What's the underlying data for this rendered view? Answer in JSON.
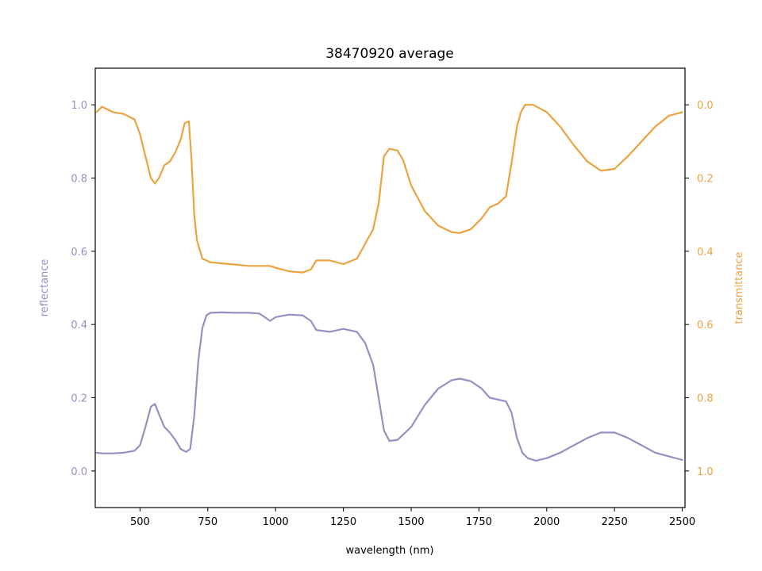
{
  "chart_data": {
    "type": "line",
    "title": "38470920 average",
    "xlabel": "wavelength (nm)",
    "ylabel_left": "reflectance",
    "ylabel_right": "transmittance",
    "xlim": [
      335,
      2510
    ],
    "ylim_left": [
      -0.1,
      1.1
    ],
    "ylim_right": [
      1.1,
      -0.1
    ],
    "x_ticks": [
      "500",
      "750",
      "1000",
      "1250",
      "1500",
      "1750",
      "2000",
      "2250",
      "2500"
    ],
    "y_left_ticks": [
      "0.0",
      "0.2",
      "0.4",
      "0.6",
      "0.8",
      "1.0"
    ],
    "y_right_ticks": [
      "0.0",
      "0.2",
      "0.4",
      "0.6",
      "0.8",
      "1.0"
    ],
    "grid": false,
    "colors": {
      "reflectance": "#9690c2",
      "transmittance": "#eda240",
      "axes": "#000000"
    },
    "series": [
      {
        "name": "reflectance",
        "axis": "left",
        "color": "#9690c2",
        "x": [
          340,
          360,
          400,
          440,
          480,
          500,
          520,
          540,
          555,
          570,
          590,
          610,
          630,
          650,
          670,
          685,
          700,
          715,
          730,
          745,
          760,
          800,
          850,
          900,
          940,
          960,
          980,
          1000,
          1050,
          1100,
          1130,
          1150,
          1200,
          1250,
          1300,
          1330,
          1360,
          1380,
          1400,
          1420,
          1450,
          1500,
          1550,
          1600,
          1650,
          1680,
          1720,
          1760,
          1790,
          1820,
          1850,
          1870,
          1890,
          1910,
          1930,
          1960,
          2000,
          2050,
          2100,
          2150,
          2200,
          2250,
          2300,
          2350,
          2400,
          2450,
          2500
        ],
        "y": [
          0.05,
          0.048,
          0.048,
          0.05,
          0.055,
          0.07,
          0.12,
          0.175,
          0.183,
          0.155,
          0.12,
          0.105,
          0.085,
          0.06,
          0.052,
          0.06,
          0.15,
          0.3,
          0.39,
          0.425,
          0.432,
          0.433,
          0.432,
          0.432,
          0.43,
          0.42,
          0.41,
          0.42,
          0.427,
          0.425,
          0.41,
          0.385,
          0.38,
          0.388,
          0.38,
          0.35,
          0.29,
          0.2,
          0.11,
          0.082,
          0.085,
          0.12,
          0.18,
          0.225,
          0.248,
          0.252,
          0.245,
          0.225,
          0.2,
          0.195,
          0.19,
          0.16,
          0.09,
          0.05,
          0.035,
          0.028,
          0.035,
          0.05,
          0.07,
          0.09,
          0.105,
          0.105,
          0.09,
          0.07,
          0.05,
          0.04,
          0.03
        ]
      },
      {
        "name": "transmittance",
        "axis": "right",
        "color": "#eda240",
        "x": [
          340,
          360,
          400,
          440,
          480,
          500,
          520,
          540,
          555,
          570,
          590,
          610,
          630,
          650,
          665,
          680,
          690,
          700,
          710,
          730,
          760,
          800,
          850,
          900,
          950,
          980,
          1000,
          1050,
          1100,
          1130,
          1150,
          1200,
          1250,
          1300,
          1330,
          1360,
          1380,
          1400,
          1420,
          1450,
          1470,
          1500,
          1550,
          1600,
          1650,
          1680,
          1720,
          1760,
          1790,
          1820,
          1850,
          1870,
          1890,
          1905,
          1920,
          1950,
          2000,
          2050,
          2100,
          2150,
          2200,
          2250,
          2300,
          2350,
          2400,
          2450,
          2500
        ],
        "y": [
          0.02,
          0.005,
          0.02,
          0.025,
          0.04,
          0.08,
          0.14,
          0.2,
          0.215,
          0.2,
          0.165,
          0.155,
          0.13,
          0.095,
          0.05,
          0.045,
          0.15,
          0.3,
          0.37,
          0.42,
          0.43,
          0.433,
          0.436,
          0.44,
          0.44,
          0.44,
          0.445,
          0.455,
          0.458,
          0.45,
          0.425,
          0.425,
          0.435,
          0.42,
          0.38,
          0.34,
          0.27,
          0.14,
          0.12,
          0.125,
          0.15,
          0.22,
          0.29,
          0.33,
          0.348,
          0.35,
          0.34,
          0.31,
          0.28,
          0.27,
          0.25,
          0.16,
          0.06,
          0.02,
          0.0,
          0.0,
          0.02,
          0.06,
          0.11,
          0.155,
          0.18,
          0.175,
          0.14,
          0.1,
          0.06,
          0.03,
          0.02
        ]
      }
    ]
  }
}
